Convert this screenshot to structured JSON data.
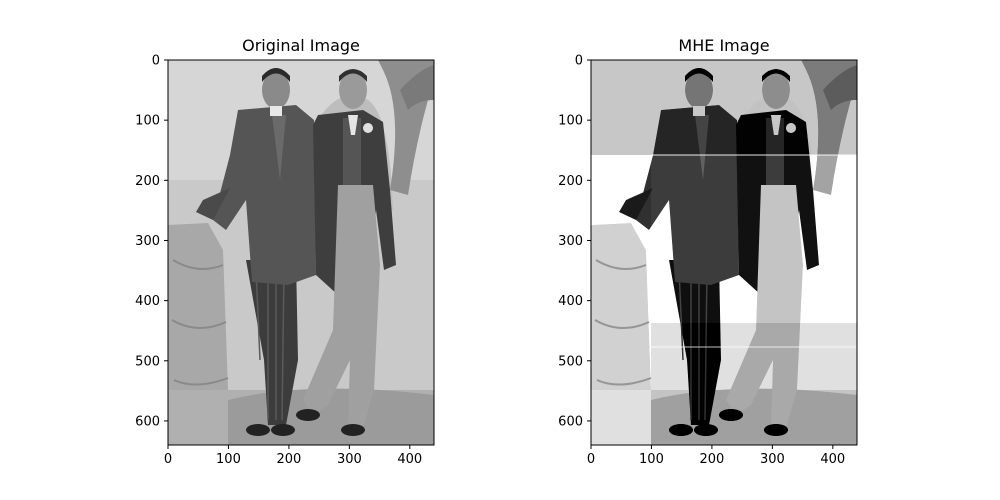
{
  "panels": [
    {
      "title": "Original Image",
      "image_desc": "Grayscale vintage photograph of two young men in suits posing together, one leaning on a stone pillar, with a painted tree backdrop",
      "x_ticks": [
        "0",
        "100",
        "200",
        "300",
        "400"
      ],
      "y_ticks": [
        "0",
        "100",
        "200",
        "300",
        "400",
        "500",
        "600"
      ],
      "x_range": [
        0,
        440
      ],
      "y_range": [
        0,
        640
      ]
    },
    {
      "title": "MHE Image",
      "image_desc": "Same photograph after multi-histogram equalization: higher contrast with visible horizontal banding",
      "x_ticks": [
        "0",
        "100",
        "200",
        "300",
        "400"
      ],
      "y_ticks": [
        "0",
        "100",
        "200",
        "300",
        "400",
        "500",
        "600"
      ],
      "x_range": [
        0,
        440
      ],
      "y_range": [
        0,
        640
      ]
    }
  ]
}
